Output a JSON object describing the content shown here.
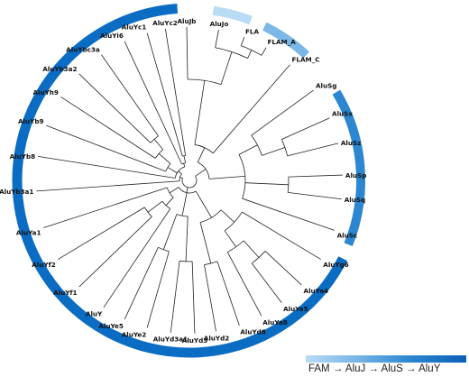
{
  "tree": {
    "leaves": [
      {
        "label": "AluJb",
        "group": "FAM"
      },
      {
        "label": "AluJo",
        "group": "AluJ"
      },
      {
        "label": "FLA",
        "group": "FAM"
      },
      {
        "label": "FLAM_A",
        "group": "FAM"
      },
      {
        "label": "FLAM_C",
        "group": "FAM"
      },
      {
        "label": "AluSg",
        "group": "AluS"
      },
      {
        "label": "AluSx",
        "group": "AluS"
      },
      {
        "label": "AluSz",
        "group": "AluS"
      },
      {
        "label": "AluSp",
        "group": "AluS"
      },
      {
        "label": "AluSq",
        "group": "AluS"
      },
      {
        "label": "AluSc",
        "group": "AluS"
      },
      {
        "label": "AluYg6",
        "group": "AluY"
      },
      {
        "label": "AluYa4",
        "group": "AluY"
      },
      {
        "label": "AluYa5",
        "group": "AluY"
      },
      {
        "label": "AluYa8",
        "group": "AluY"
      },
      {
        "label": "AluYd8",
        "group": "AluY"
      },
      {
        "label": "AluYd2",
        "group": "AluY"
      },
      {
        "label": "AluYd3",
        "group": "AluY"
      },
      {
        "label": "AluYd3a1",
        "group": "AluY"
      },
      {
        "label": "AluYe2",
        "group": "AluY"
      },
      {
        "label": "AluYe5",
        "group": "AluY"
      },
      {
        "label": "AluY",
        "group": "AluY"
      },
      {
        "label": "AluYf1",
        "group": "AluY"
      },
      {
        "label": "AluYf2",
        "group": "AluY"
      },
      {
        "label": "AluYa1",
        "group": "AluY"
      },
      {
        "label": "AluYb3a1",
        "group": "AluY"
      },
      {
        "label": "AluYb8",
        "group": "AluY"
      },
      {
        "label": "AluYb9",
        "group": "AluY"
      },
      {
        "label": "AluYh9",
        "group": "AluY"
      },
      {
        "label": "AluYb3a2",
        "group": "AluY"
      },
      {
        "label": "AluYbc3a",
        "group": "AluY"
      },
      {
        "label": "AluYi6",
        "group": "AluY"
      },
      {
        "label": "AluYc1",
        "group": "AluY"
      },
      {
        "label": "AluYc2",
        "group": "AluY"
      }
    ]
  },
  "rings": [
    {
      "name": "FAM",
      "color": "#b9dbf4"
    },
    {
      "name": "AluJ",
      "color": "#7bb8e8"
    },
    {
      "name": "AluS",
      "color": "#2c86d0"
    },
    {
      "name": "AluY",
      "color": "#0b6cc4"
    }
  ],
  "legend": {
    "text": "FAM → AluJ → AluS → AluY"
  }
}
